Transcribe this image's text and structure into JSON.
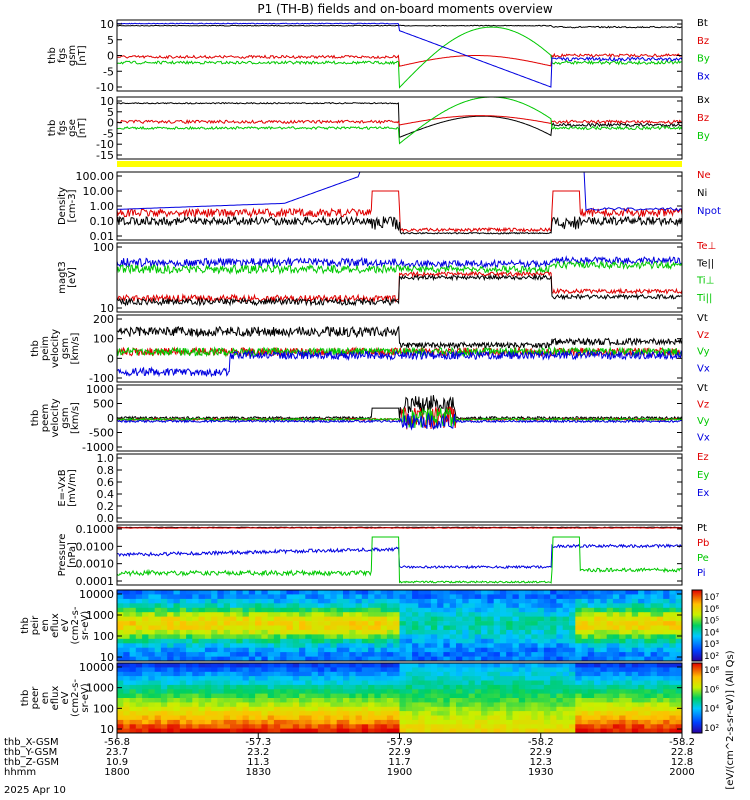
{
  "title": "P1 (TH-B) fields and on-board moments overview",
  "colors": {
    "black": "#000000",
    "red": "#e00000",
    "green": "#00c800",
    "blue": "#0000e0",
    "yellow": "#ffff00"
  },
  "chart_data": {
    "type": "line",
    "x_time_ticks": [
      "1800",
      "1830",
      "1900",
      "1930",
      "2000"
    ],
    "ephemeris": [
      {
        "label": "thb_X-GSM",
        "values": [
          "-56.8",
          "-57.3",
          "-57.9",
          "-58.2",
          "-58.2"
        ]
      },
      {
        "label": "thb_Y-GSM",
        "values": [
          "23.7",
          "23.2",
          "22.9",
          "22.9",
          "22.8"
        ]
      },
      {
        "label": "thb_Z-GSM",
        "values": [
          "10.9",
          "11.3",
          "11.7",
          "12.3",
          "12.8"
        ]
      },
      {
        "label": "hhmm",
        "values": [
          "1800",
          "1830",
          "1900",
          "1930",
          "2000"
        ]
      }
    ],
    "date_label": "2025 Apr 10",
    "panels": [
      {
        "id": "fgs_gsm",
        "ylabel": [
          "thb",
          "fgs",
          "gsm",
          "[nT]"
        ],
        "yticks": [
          "10",
          "5",
          "0",
          "-5",
          "-10"
        ],
        "legend": [
          {
            "text": "Bt",
            "color": "black"
          },
          {
            "text": "Bz",
            "color": "red"
          },
          {
            "text": "By",
            "color": "green"
          },
          {
            "text": "Bx",
            "color": "blue"
          }
        ]
      },
      {
        "id": "fgs_gse",
        "ylabel": [
          "thb",
          "fgs",
          "gse",
          "[nT]"
        ],
        "yticks": [
          "10",
          "5",
          "0",
          "-5",
          "-10",
          "-15"
        ],
        "legend": [
          {
            "text": "Bx",
            "color": "black"
          },
          {
            "text": "Bz",
            "color": "red"
          },
          {
            "text": "By",
            "color": "green"
          }
        ]
      },
      {
        "id": "density",
        "ylabel": [
          "Density",
          "[cm-3]"
        ],
        "yticks": [
          "100.00",
          "10.00",
          "1.00",
          "0.10",
          "0.01"
        ],
        "legend": [
          {
            "text": "Ne",
            "color": "red"
          },
          {
            "text": "Ni",
            "color": "black"
          },
          {
            "text": "Npot",
            "color": "blue"
          }
        ]
      },
      {
        "id": "temp",
        "ylabel": [
          "magt3",
          "[eV]"
        ],
        "yticks": [
          "100",
          "10"
        ],
        "legend": [
          {
            "text": "Te⊥",
            "color": "red"
          },
          {
            "text": "Te||",
            "color": "black"
          },
          {
            "text": "Ti⊥",
            "color": "green"
          },
          {
            "text": "Ti||",
            "color": "green"
          }
        ]
      },
      {
        "id": "peim",
        "ylabel": [
          "thb",
          "peim",
          "velocity",
          "gsm",
          "[km/s]"
        ],
        "yticks": [
          "200",
          "100",
          "0",
          "-100"
        ],
        "legend": [
          {
            "text": "Vt",
            "color": "black"
          },
          {
            "text": "Vz",
            "color": "red"
          },
          {
            "text": "Vy",
            "color": "green"
          },
          {
            "text": "Vx",
            "color": "blue"
          }
        ]
      },
      {
        "id": "peem",
        "ylabel": [
          "thb",
          "peem",
          "velocity",
          "gsm",
          "[km/s]"
        ],
        "yticks": [
          "1000",
          "500",
          "0",
          "-500",
          "-1000"
        ],
        "legend": [
          {
            "text": "Vt",
            "color": "black"
          },
          {
            "text": "Vz",
            "color": "red"
          },
          {
            "text": "Vy",
            "color": "green"
          },
          {
            "text": "Vx",
            "color": "blue"
          }
        ]
      },
      {
        "id": "efield",
        "ylabel": [
          "E=-VxB",
          "[mV/m]"
        ],
        "yticks": [
          "1.0",
          "0.8",
          "0.6",
          "0.4",
          "0.2",
          "0.0"
        ],
        "legend": [
          {
            "text": "Ez",
            "color": "red"
          },
          {
            "text": "Ey",
            "color": "green"
          },
          {
            "text": "Ex",
            "color": "blue"
          }
        ]
      },
      {
        "id": "pressure",
        "ylabel": [
          "Pressure",
          "[nPa]"
        ],
        "yticks": [
          "0.1000",
          "0.0100",
          "0.0010",
          "0.0001"
        ],
        "legend": [
          {
            "text": "Pt",
            "color": "black"
          },
          {
            "text": "Pb",
            "color": "red"
          },
          {
            "text": "Pe",
            "color": "green"
          },
          {
            "text": "Pi",
            "color": "blue"
          }
        ]
      },
      {
        "id": "peir",
        "ylabel": [
          "thb",
          "peir",
          "en",
          "eflux",
          "eV",
          "(cm2-s-",
          "sr-eV)"
        ],
        "yticks": [
          "10000",
          "1000",
          "100",
          "10"
        ],
        "colorbar_ticks": [
          "10⁷",
          "10⁶",
          "10⁵",
          "10⁴",
          "10³",
          "10²"
        ]
      },
      {
        "id": "peer",
        "ylabel": [
          "thb",
          "peer",
          "en",
          "eflux",
          "eV",
          "(cm2-s-",
          "sr-eV)"
        ],
        "yticks": [
          "10000",
          "1000",
          "100",
          "10"
        ],
        "colorbar_ticks": [
          "10⁸",
          "10⁶",
          "10⁴",
          "10²"
        ]
      }
    ],
    "colorbar_label": "[eV/(cm^2-s-sr-eV)] (All Qs)"
  }
}
